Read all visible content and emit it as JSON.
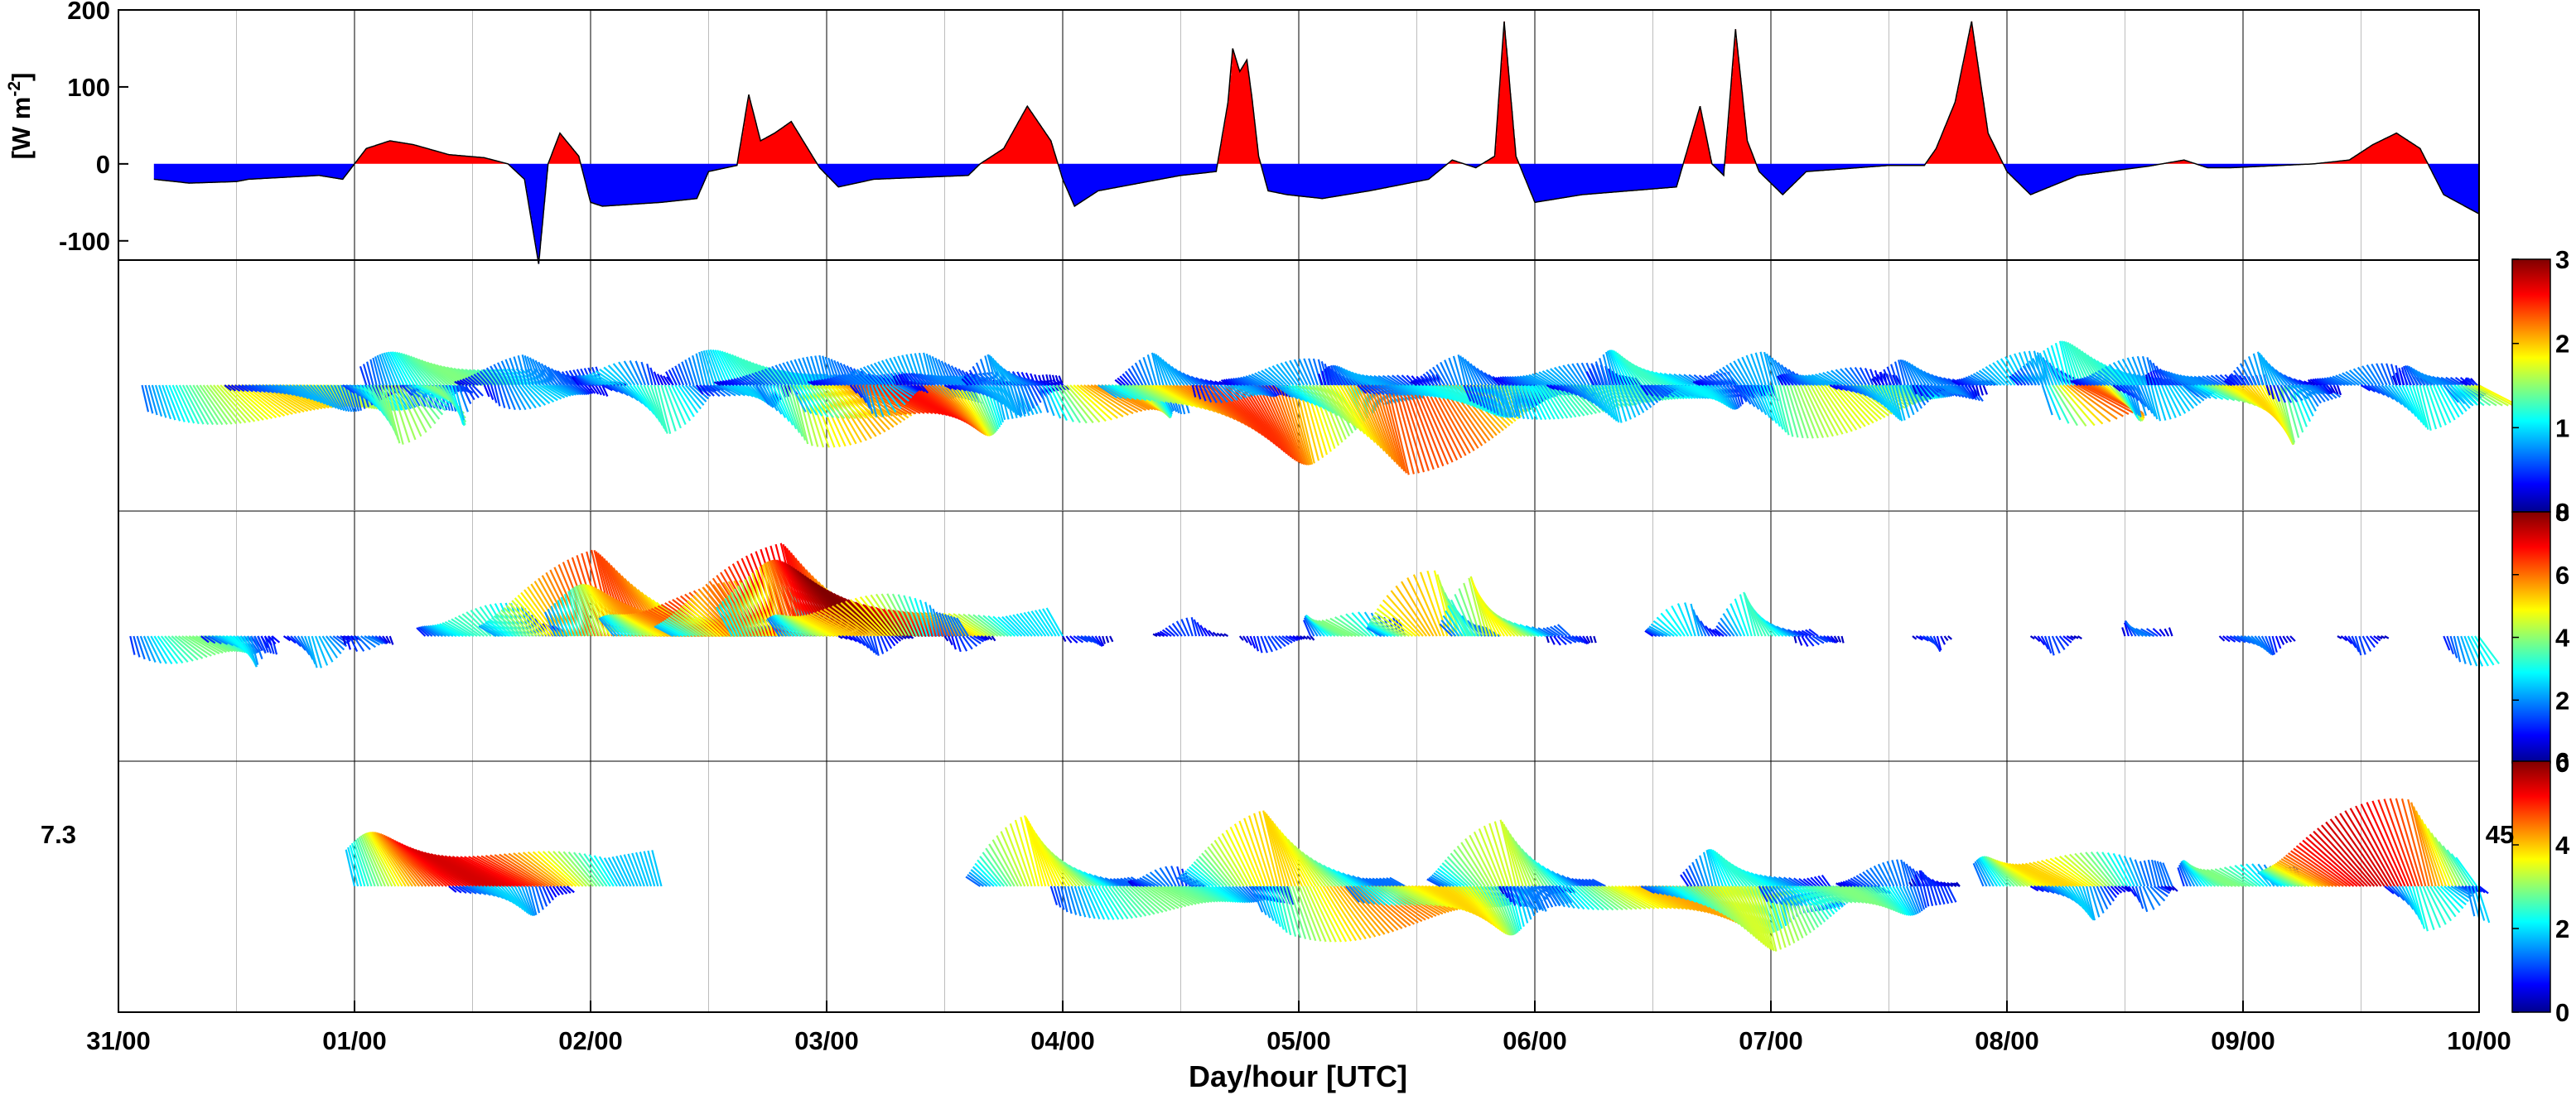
{
  "figure": {
    "xlabel": "Day/hour [UTC]",
    "x_tick_labels": [
      "31/00",
      "01/00",
      "02/00",
      "03/00",
      "04/00",
      "05/00",
      "06/00",
      "07/00",
      "08/00",
      "09/00",
      "10/00"
    ],
    "minor_grid_hours": [
      12
    ]
  },
  "colors": {
    "positive_fill": "#ff0000",
    "negative_fill": "#0000ff",
    "outline": "#000000",
    "major_grid": "#000000",
    "minor_grid": "#bdbdbd",
    "colormap": "jet"
  },
  "panels": {
    "flux": {
      "ylabel": "[W m-2]",
      "ylabel_main": "[W m",
      "ylabel_sup": "-2",
      "ylabel_end": "]"
    },
    "vec1": {
      "colorbar_ticks": [
        "0",
        "1",
        "2",
        "3"
      ]
    },
    "vec2": {
      "colorbar_ticks": [
        "0",
        "2",
        "4",
        "6",
        "8"
      ]
    },
    "vec3": {
      "colorbar_ticks": [
        "0",
        "2",
        "4",
        "6"
      ],
      "left_label": "7.3",
      "right_label": "45"
    }
  },
  "chart_data": [
    {
      "type": "area",
      "panel": "flux",
      "ylabel": "[W m-2]",
      "ylim": [
        -125,
        200
      ],
      "yticks": [
        -100,
        0,
        100,
        200
      ],
      "x_unit": "day offset from 31/00",
      "xlim": [
        0,
        10
      ],
      "grid": true,
      "series": [
        {
          "values": [
            [
              0.15,
              -20
            ],
            [
              0.3,
              -25
            ],
            [
              0.5,
              -23
            ],
            [
              0.55,
              -20
            ],
            [
              0.85,
              -15
            ],
            [
              0.95,
              -20
            ],
            [
              1.0,
              0
            ],
            [
              1.05,
              20
            ],
            [
              1.15,
              30
            ],
            [
              1.25,
              25
            ],
            [
              1.4,
              12
            ],
            [
              1.55,
              8
            ],
            [
              1.65,
              0
            ],
            [
              1.72,
              -20
            ],
            [
              1.78,
              -130
            ],
            [
              1.82,
              0
            ],
            [
              1.87,
              40
            ],
            [
              1.95,
              10
            ],
            [
              2.0,
              -50
            ],
            [
              2.05,
              -55
            ],
            [
              2.3,
              -50
            ],
            [
              2.45,
              -45
            ],
            [
              2.5,
              -10
            ],
            [
              2.62,
              -2
            ],
            [
              2.67,
              90
            ],
            [
              2.72,
              30
            ],
            [
              2.78,
              40
            ],
            [
              2.85,
              55
            ],
            [
              2.92,
              20
            ],
            [
              2.97,
              -5
            ],
            [
              3.05,
              -30
            ],
            [
              3.2,
              -20
            ],
            [
              3.6,
              -15
            ],
            [
              3.65,
              0
            ],
            [
              3.75,
              20
            ],
            [
              3.85,
              75
            ],
            [
              3.95,
              30
            ],
            [
              4.0,
              -20
            ],
            [
              4.05,
              -55
            ],
            [
              4.15,
              -35
            ],
            [
              4.5,
              -15
            ],
            [
              4.65,
              -10
            ],
            [
              4.7,
              80
            ],
            [
              4.72,
              150
            ],
            [
              4.75,
              120
            ],
            [
              4.78,
              135
            ],
            [
              4.8,
              90
            ],
            [
              4.83,
              10
            ],
            [
              4.87,
              -35
            ],
            [
              4.95,
              -40
            ],
            [
              5.1,
              -45
            ],
            [
              5.3,
              -35
            ],
            [
              5.55,
              -20
            ],
            [
              5.65,
              5
            ],
            [
              5.75,
              -5
            ],
            [
              5.83,
              10
            ],
            [
              5.87,
              185
            ],
            [
              5.92,
              10
            ],
            [
              6.0,
              -50
            ],
            [
              6.2,
              -40
            ],
            [
              6.6,
              -30
            ],
            [
              6.7,
              75
            ],
            [
              6.75,
              0
            ],
            [
              6.8,
              -15
            ],
            [
              6.85,
              175
            ],
            [
              6.9,
              30
            ],
            [
              6.95,
              -10
            ],
            [
              7.05,
              -40
            ],
            [
              7.15,
              -10
            ],
            [
              7.5,
              -2
            ],
            [
              7.65,
              -2
            ],
            [
              7.7,
              20
            ],
            [
              7.78,
              80
            ],
            [
              7.85,
              185
            ],
            [
              7.92,
              40
            ],
            [
              8.0,
              -10
            ],
            [
              8.1,
              -40
            ],
            [
              8.3,
              -15
            ],
            [
              8.6,
              -3
            ],
            [
              8.75,
              5
            ],
            [
              8.85,
              -5
            ],
            [
              8.95,
              -5
            ],
            [
              9.3,
              0
            ],
            [
              9.45,
              5
            ],
            [
              9.55,
              25
            ],
            [
              9.65,
              40
            ],
            [
              9.75,
              20
            ],
            [
              9.85,
              -40
            ],
            [
              10.0,
              -65
            ]
          ]
        }
      ]
    },
    {
      "type": "vector",
      "panel": "vec1",
      "colorbar_ticks": [
        0,
        1,
        2,
        3
      ],
      "xlim": [
        0,
        10
      ],
      "clusters": [
        [
          0.1,
          -1,
          1.3,
          2.0
        ],
        [
          0.45,
          -1,
          0.8,
          0.9
        ],
        [
          0.95,
          -1,
          0.5,
          1.6
        ],
        [
          1.05,
          1,
          1.0,
          1.5
        ],
        [
          1.2,
          -1,
          0.3,
          1.5
        ],
        [
          1.45,
          1,
          0.7,
          0.8
        ],
        [
          1.55,
          -1,
          0.5,
          1.0
        ],
        [
          1.95,
          1,
          0.4,
          1.0
        ],
        [
          2.05,
          -1,
          0.5,
          1.3
        ],
        [
          2.35,
          1,
          1.0,
          1.3
        ],
        [
          2.45,
          -1,
          0.4,
          1.0
        ],
        [
          2.55,
          1,
          0.9,
          0.8
        ],
        [
          2.7,
          -1,
          0.9,
          2.1
        ],
        [
          2.85,
          -1,
          1.0,
          2.6
        ],
        [
          2.95,
          1,
          0.9,
          0.9
        ],
        [
          3.1,
          -1,
          0.3,
          1.0
        ],
        [
          3.3,
          1,
          0.7,
          0.8
        ],
        [
          3.5,
          -1,
          0.5,
          0.9
        ],
        [
          3.6,
          1,
          0.4,
          0.9
        ],
        [
          3.9,
          -1,
          0.6,
          2.2
        ],
        [
          4.15,
          -1,
          1.3,
          2.5
        ],
        [
          4.25,
          1,
          0.5,
          0.9
        ],
        [
          4.55,
          -1,
          0.4,
          0.9
        ],
        [
          4.7,
          1,
          0.6,
          0.9
        ],
        [
          4.9,
          -1,
          1.3,
          2.4
        ],
        [
          5.1,
          1,
          0.5,
          0.9
        ],
        [
          5.25,
          -1,
          0.9,
          1.2
        ],
        [
          5.5,
          1,
          0.5,
          0.8
        ],
        [
          5.7,
          -1,
          1.3,
          1.4
        ],
        [
          5.85,
          1,
          0.6,
          0.9
        ],
        [
          6.05,
          -1,
          0.6,
          1.0
        ],
        [
          6.25,
          1,
          0.6,
          1.3
        ],
        [
          6.45,
          -1,
          0.5,
          1.1
        ],
        [
          6.7,
          1,
          0.6,
          0.9
        ],
        [
          6.85,
          -1,
          1.0,
          1.8
        ],
        [
          7.05,
          1,
          0.5,
          0.9
        ],
        [
          7.25,
          -1,
          0.5,
          1.0
        ],
        [
          7.45,
          1,
          0.5,
          0.8
        ],
        [
          7.6,
          -1,
          0.3,
          0.8
        ],
        [
          7.8,
          1,
          0.6,
          1.0
        ],
        [
          8.05,
          1,
          0.8,
          1.3
        ],
        [
          8.15,
          -1,
          0.4,
          2.4
        ],
        [
          8.3,
          1,
          0.5,
          0.9
        ],
        [
          8.45,
          -1,
          0.5,
          1.0
        ],
        [
          8.6,
          1,
          0.5,
          0.8
        ],
        [
          8.75,
          -1,
          0.6,
          2.0
        ],
        [
          8.95,
          1,
          0.4,
          0.9
        ],
        [
          9.1,
          -1,
          0.3,
          0.8
        ],
        [
          9.3,
          1,
          0.5,
          0.8
        ],
        [
          9.5,
          -1,
          0.6,
          1.2
        ],
        [
          9.65,
          1,
          0.4,
          0.8
        ],
        [
          9.85,
          -1,
          0.6,
          2.2
        ],
        [
          9.95,
          1,
          0.5,
          0.9
        ]
      ]
    },
    {
      "type": "vector",
      "panel": "vec2",
      "colorbar_ticks": [
        0,
        2,
        4,
        6,
        8
      ],
      "xlim": [
        0,
        10
      ],
      "clusters": [
        [
          0.05,
          -1,
          0.6,
          4.0
        ],
        [
          0.35,
          -1,
          0.3,
          3.0
        ],
        [
          0.7,
          -1,
          0.3,
          2.5
        ],
        [
          0.95,
          -1,
          0.2,
          2.0
        ],
        [
          1.3,
          1,
          0.6,
          3.5
        ],
        [
          1.6,
          1,
          1.2,
          6.5
        ],
        [
          1.85,
          1,
          1.1,
          6.0
        ],
        [
          2.1,
          1,
          1.0,
          6.5
        ],
        [
          2.35,
          1,
          1.2,
          7.0
        ],
        [
          2.6,
          1,
          1.4,
          8.0
        ],
        [
          2.8,
          1,
          0.8,
          5.5
        ],
        [
          3.05,
          -1,
          0.3,
          1.5
        ],
        [
          3.5,
          -1,
          0.2,
          1.5
        ],
        [
          4.0,
          -1,
          0.2,
          1.5
        ],
        [
          4.4,
          1,
          0.3,
          1.5
        ],
        [
          4.75,
          -1,
          0.3,
          1.5
        ],
        [
          5.05,
          1,
          0.4,
          4.0
        ],
        [
          5.35,
          1,
          0.5,
          5.5
        ],
        [
          5.65,
          1,
          0.5,
          5.0
        ],
        [
          6.05,
          -1,
          0.2,
          1.5
        ],
        [
          6.5,
          1,
          0.3,
          3.0
        ],
        [
          6.8,
          1,
          0.4,
          3.5
        ],
        [
          7.1,
          -1,
          0.2,
          1.5
        ],
        [
          7.6,
          -1,
          0.15,
          1.5
        ],
        [
          8.1,
          -1,
          0.2,
          1.5
        ],
        [
          8.5,
          1,
          0.2,
          2.0
        ],
        [
          8.9,
          -1,
          0.3,
          2.0
        ],
        [
          9.4,
          -1,
          0.2,
          1.5
        ],
        [
          9.85,
          -1,
          0.5,
          3.5
        ]
      ]
    },
    {
      "type": "vector",
      "panel": "vec3",
      "colorbar_ticks": [
        0,
        2,
        4,
        6
      ],
      "xlim": [
        0,
        10
      ],
      "clusters": [
        [
          1.0,
          1,
          1.3,
          5.5
        ],
        [
          1.4,
          -1,
          0.5,
          2.0
        ],
        [
          3.65,
          1,
          0.7,
          3.8
        ],
        [
          3.95,
          -1,
          1.0,
          3.0
        ],
        [
          4.3,
          1,
          0.3,
          1.5
        ],
        [
          4.55,
          1,
          0.9,
          4.0
        ],
        [
          4.8,
          -1,
          1.2,
          4.5
        ],
        [
          5.2,
          -1,
          0.9,
          4.0
        ],
        [
          5.6,
          1,
          0.7,
          3.5
        ],
        [
          5.85,
          -1,
          0.3,
          1.5
        ],
        [
          6.05,
          -1,
          1.2,
          4.3
        ],
        [
          6.45,
          -1,
          1.0,
          3.5
        ],
        [
          6.65,
          1,
          0.6,
          2.5
        ],
        [
          6.95,
          -1,
          0.8,
          3.0
        ],
        [
          7.3,
          1,
          0.5,
          1.5
        ],
        [
          7.6,
          1,
          0.2,
          1.0
        ],
        [
          7.9,
          1,
          0.8,
          4.0
        ],
        [
          8.1,
          -1,
          0.4,
          2.0
        ],
        [
          8.5,
          -1,
          0.2,
          1.5
        ],
        [
          8.75,
          1,
          0.5,
          3.0
        ],
        [
          9.15,
          1,
          1.0,
          5.5
        ],
        [
          9.6,
          -1,
          0.4,
          2.5
        ],
        [
          9.95,
          -1,
          1.0,
          4.5
        ]
      ]
    }
  ]
}
